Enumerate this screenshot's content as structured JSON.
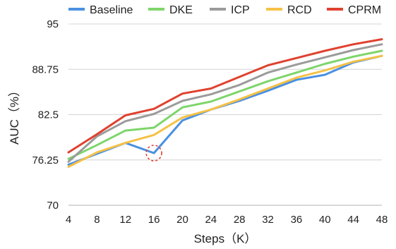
{
  "chart_data": {
    "type": "line",
    "xlabel": "Steps（K）",
    "ylabel": "AUC（%）",
    "x": [
      4,
      8,
      12,
      16,
      20,
      24,
      28,
      32,
      36,
      40,
      44,
      48
    ],
    "x_tick_labels": [
      "4",
      "8",
      "12",
      "16",
      "20",
      "24",
      "28",
      "32",
      "36",
      "40",
      "44",
      "48"
    ],
    "xlim": [
      4,
      48
    ],
    "ylim": [
      70,
      95
    ],
    "y_ticks": [
      70,
      76.25,
      82.5,
      88.75,
      95
    ],
    "y_tick_labels": [
      "70",
      "76.25",
      "82.5",
      "88.75",
      "95"
    ],
    "grid": "horizontal",
    "legend_position": "top",
    "series": [
      {
        "name": "Baseline",
        "color": "#4a90e2",
        "values": [
          75.6,
          77.1,
          78.6,
          77.2,
          81.7,
          83.2,
          84.4,
          85.8,
          87.3,
          88.0,
          89.7,
          90.6
        ]
      },
      {
        "name": "DKE",
        "color": "#7ed56b",
        "values": [
          76.4,
          78.3,
          80.3,
          80.7,
          83.5,
          84.3,
          85.7,
          87.1,
          88.3,
          89.5,
          90.5,
          91.3
        ]
      },
      {
        "name": "ICP",
        "color": "#9b9b9b",
        "values": [
          76.0,
          79.5,
          81.6,
          82.6,
          84.4,
          85.3,
          86.6,
          88.3,
          89.4,
          90.4,
          91.4,
          92.2
        ]
      },
      {
        "name": "RCD",
        "color": "#f5c146",
        "values": [
          75.3,
          77.3,
          78.6,
          79.7,
          82.1,
          83.2,
          84.6,
          86.1,
          87.6,
          88.6,
          89.8,
          90.6
        ]
      },
      {
        "name": "CPRM",
        "color": "#e0412f",
        "values": [
          77.3,
          79.8,
          82.4,
          83.3,
          85.4,
          86.1,
          87.7,
          89.3,
          90.3,
          91.3,
          92.2,
          92.9
        ]
      }
    ],
    "annotations": [
      {
        "type": "dashed-circle",
        "x": 16,
        "y": 77.2,
        "color": "#e23a2a"
      }
    ]
  }
}
